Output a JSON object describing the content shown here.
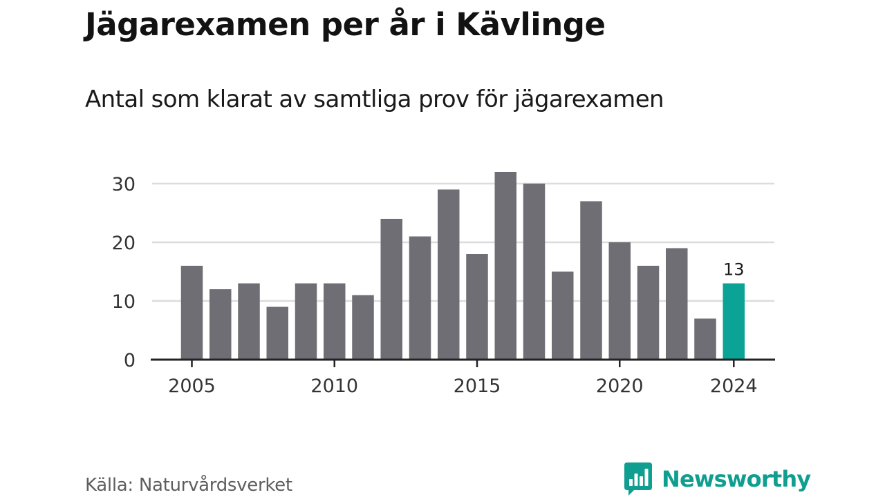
{
  "title": "Jägarexamen per år i Kävlinge",
  "subtitle": "Antal som klarat av samtliga prov för jägarexamen",
  "source": "Källa: Naturvårdsverket",
  "brand": {
    "name": "Newsworthy",
    "icon": "bar-chart-speech-bubble-icon",
    "color": "#0f9e8f"
  },
  "chart_data": {
    "type": "bar",
    "title": "",
    "xlabel": "",
    "ylabel": "",
    "categories": [
      "2005",
      "2006",
      "2007",
      "2008",
      "2009",
      "2010",
      "2011",
      "2012",
      "2013",
      "2014",
      "2015",
      "2016",
      "2017",
      "2018",
      "2019",
      "2020",
      "2021",
      "2022",
      "2023",
      "2024"
    ],
    "values": [
      16,
      12,
      13,
      9,
      13,
      13,
      11,
      24,
      21,
      29,
      18,
      32,
      30,
      15,
      27,
      20,
      16,
      19,
      7,
      13
    ],
    "ylim": [
      0,
      32
    ],
    "yticks": [
      0,
      10,
      20,
      30
    ],
    "xtick_labels": [
      "2005",
      "2010",
      "2015",
      "2020",
      "2024"
    ],
    "highlight": {
      "category": "2024",
      "value_label": "13"
    },
    "grid": true,
    "legend": "none",
    "colors": {
      "bar": "#6f6e74",
      "highlight": "#0aa396",
      "grid": "#dcdcdc",
      "axis": "#222222"
    }
  }
}
